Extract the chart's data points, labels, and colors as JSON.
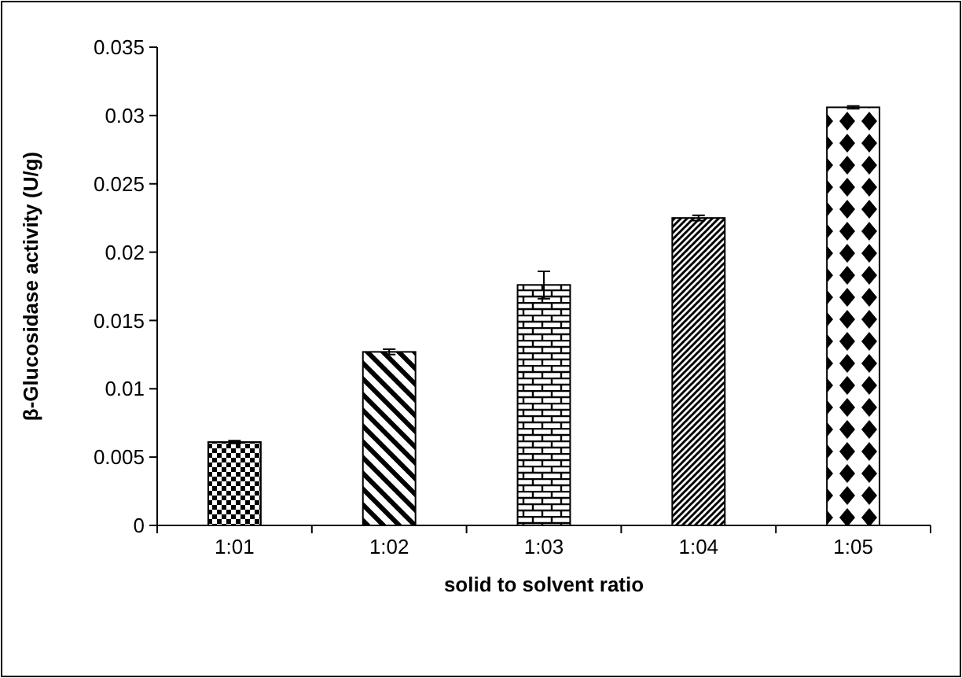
{
  "chart_data": {
    "type": "bar",
    "xlabel": "solid to solvent ratio",
    "ylabel": "β-Glucosidase activity (U/g)",
    "categories": [
      "1:01",
      "1:02",
      "1:03",
      "1:04",
      "1:05"
    ],
    "values": [
      0.0061,
      0.0127,
      0.0176,
      0.0225,
      0.0306
    ],
    "errors": [
      0.0001,
      0.0002,
      0.001,
      0.0002,
      0.0001
    ],
    "color": "#000000",
    "ylim": [
      0,
      0.035
    ],
    "yticks": [
      0,
      0.005,
      0.01,
      0.015,
      0.02,
      0.025,
      0.03,
      0.035
    ],
    "grid": false
  }
}
